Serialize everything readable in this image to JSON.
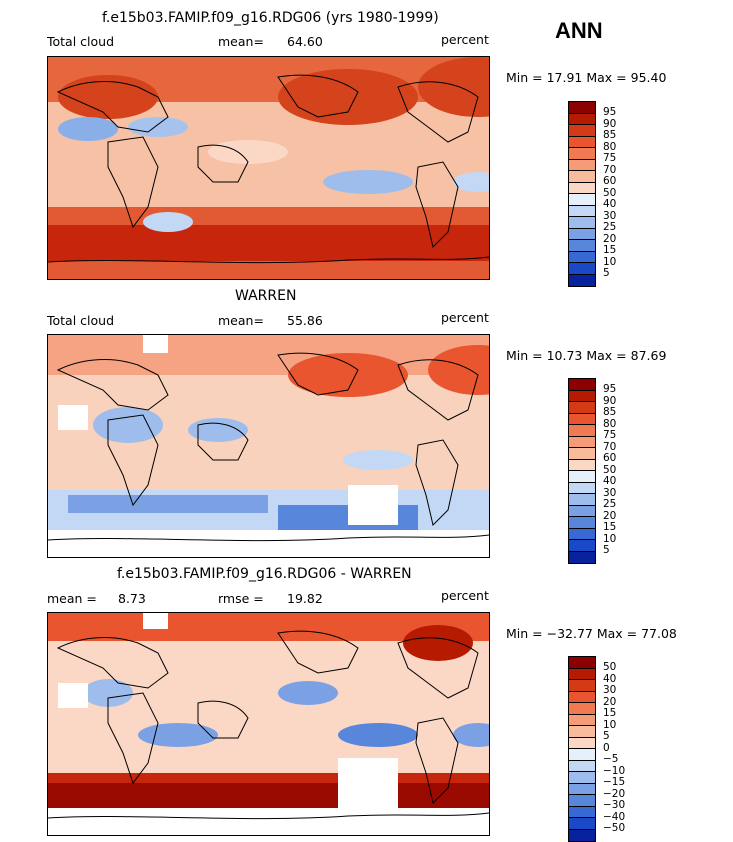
{
  "season": "ANN",
  "palette_abs": [
    "#8b0000",
    "#b61a00",
    "#d43a15",
    "#e8552e",
    "#f27a52",
    "#f59b78",
    "#f8bb9c",
    "#fbd8c6",
    "#e6f0fb",
    "#c3d8f4",
    "#9fbdec",
    "#7ba1e4",
    "#5886db",
    "#3769d4",
    "#1a49c8",
    "#08229e"
  ],
  "palette_diff": [
    "#8b0000",
    "#b61a00",
    "#d43a15",
    "#e8552e",
    "#f27a52",
    "#f59b78",
    "#f8bb9c",
    "#fbd8c6",
    "#e6f0fb",
    "#c3d8f4",
    "#9fbdec",
    "#7ba1e4",
    "#5886db",
    "#3769d4",
    "#1a49c8",
    "#08229e"
  ],
  "panels": [
    {
      "title": "f.e15b03.FAMIP.f09_g16.RDG06 (yrs 1980-1999)",
      "left_label": "Total cloud",
      "stat_label": "mean=",
      "stat_value": "64.60",
      "units": "percent",
      "minmax": "Min =  17.91  Max =  95.40",
      "levels": [
        "95",
        "90",
        "85",
        "80",
        "75",
        "70",
        "60",
        "50",
        "40",
        "30",
        "25",
        "20",
        "15",
        "10",
        "5"
      ]
    },
    {
      "title": "WARREN",
      "left_label": "Total cloud",
      "stat_label": "mean=",
      "stat_value": "55.86",
      "units": "percent",
      "minmax": "Min =  10.73  Max =  87.69",
      "levels": [
        "95",
        "90",
        "85",
        "80",
        "75",
        "70",
        "60",
        "50",
        "40",
        "30",
        "25",
        "20",
        "15",
        "10",
        "5"
      ]
    },
    {
      "title": "f.e15b03.FAMIP.f09_g16.RDG06 - WARREN",
      "left_label": "mean =",
      "left_value": "8.73",
      "stat_label": "rmse =",
      "stat_value": "19.82",
      "units": "percent",
      "minmax": "Min = −32.77  Max =  77.08",
      "levels": [
        "50",
        "40",
        "30",
        "20",
        "15",
        "10",
        "5",
        "0",
        "−5",
        "−10",
        "−15",
        "−20",
        "−30",
        "−40",
        "−50"
      ]
    }
  ]
}
